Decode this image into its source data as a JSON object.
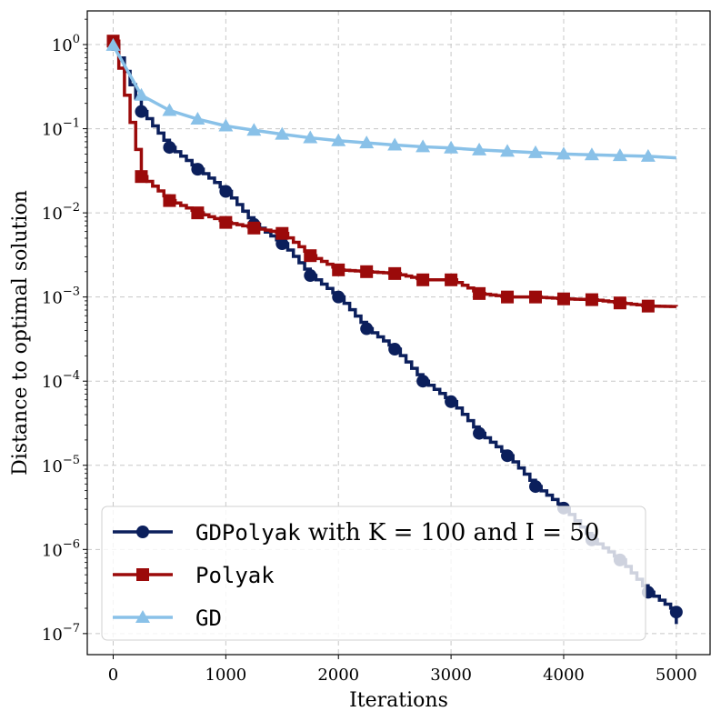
{
  "chart_data": {
    "type": "line",
    "xlabel": "Iterations",
    "ylabel": "Distance to optimal solution",
    "xlim": [
      -230,
      5300
    ],
    "ylim_log10": [
      -7.25,
      0.4
    ],
    "yscale": "log",
    "grid": true,
    "x_ticks": [
      0,
      1000,
      2000,
      3000,
      4000,
      5000
    ],
    "x_tick_labels": [
      "0",
      "1000",
      "2000",
      "3000",
      "4000",
      "5000"
    ],
    "y_tick_exponents": [
      0,
      -1,
      -2,
      -3,
      -4,
      -5,
      -6,
      -7
    ],
    "y_tick_labels": [
      {
        "base": "10",
        "exp": "0"
      },
      {
        "base": "10",
        "exp": "−1"
      },
      {
        "base": "10",
        "exp": "−2"
      },
      {
        "base": "10",
        "exp": "−3"
      },
      {
        "base": "10",
        "exp": "−4"
      },
      {
        "base": "10",
        "exp": "−5"
      },
      {
        "base": "10",
        "exp": "−6"
      },
      {
        "base": "10",
        "exp": "−7"
      }
    ],
    "legend_position": "lower-left",
    "series": [
      {
        "name_mono": "GDPolyak",
        "name_rest": " with K = 100 and I = 50",
        "color": "#0b1f5c",
        "marker": "circle",
        "x": [
          0,
          250,
          500,
          750,
          1000,
          1250,
          1500,
          1750,
          2000,
          2250,
          2500,
          2750,
          3000,
          3250,
          3500,
          3750,
          4000,
          4250,
          4500,
          4750,
          5000
        ],
        "y": [
          1.0,
          0.16,
          0.06,
          0.033,
          0.018,
          0.0073,
          0.0043,
          0.0018,
          0.001,
          0.00042,
          0.00024,
          0.0001,
          5.7e-05,
          2.4e-05,
          1.3e-05,
          5.6e-06,
          3.1e-06,
          1.3e-06,
          7.5e-07,
          3.1e-07,
          1.8e-07
        ]
      },
      {
        "name_mono": "Polyak",
        "name_rest": "",
        "color": "#9b0a0a",
        "marker": "square",
        "x": [
          0,
          250,
          500,
          750,
          1000,
          1250,
          1500,
          1750,
          2000,
          2250,
          2500,
          2750,
          3000,
          3250,
          3500,
          3750,
          4000,
          4250,
          4500,
          4750
        ],
        "y": [
          1.1,
          0.027,
          0.014,
          0.01,
          0.0077,
          0.0066,
          0.0057,
          0.0031,
          0.0021,
          0.002,
          0.0019,
          0.0016,
          0.0016,
          0.0011,
          0.001,
          0.001,
          0.00095,
          0.00093,
          0.00085,
          0.00078
        ]
      },
      {
        "name_mono": "GD",
        "name_rest": "",
        "color": "#89c1e8",
        "marker": "triangle",
        "x": [
          0,
          250,
          500,
          750,
          1000,
          1250,
          1500,
          1750,
          2000,
          2250,
          2500,
          2750,
          3000,
          3250,
          3500,
          3750,
          4000,
          4250,
          4500,
          4750
        ],
        "y": [
          0.98,
          0.25,
          0.165,
          0.13,
          0.108,
          0.096,
          0.086,
          0.078,
          0.072,
          0.068,
          0.064,
          0.061,
          0.059,
          0.056,
          0.054,
          0.052,
          0.05,
          0.049,
          0.048,
          0.047
        ]
      }
    ]
  }
}
